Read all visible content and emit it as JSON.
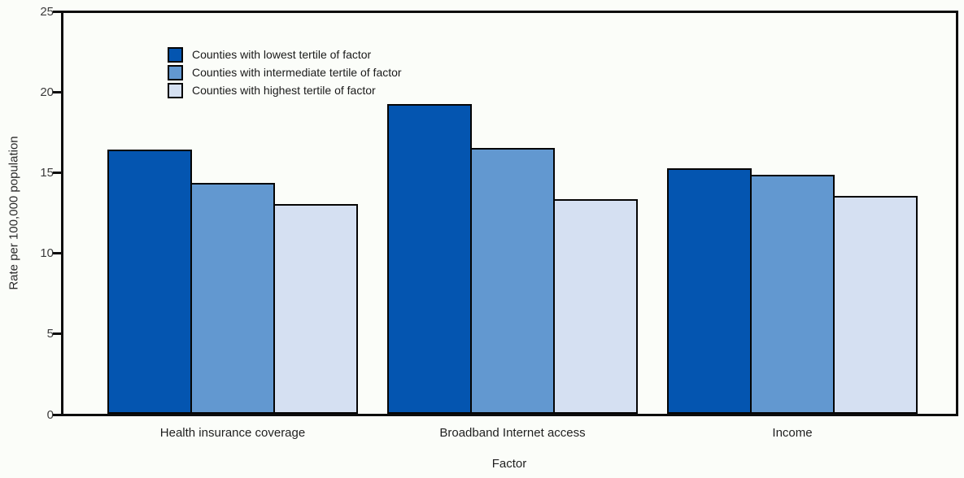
{
  "chart_data": {
    "type": "bar",
    "title": "",
    "xlabel": "Factor",
    "ylabel": "Rate per 100,000 population",
    "ylim": [
      0,
      25
    ],
    "yticks": [
      0,
      5,
      10,
      15,
      20,
      25
    ],
    "grid": false,
    "legend_position": "top-left-inside",
    "categories": [
      "Health insurance coverage",
      "Broadband Internet access",
      "Income"
    ],
    "series": [
      {
        "name": "Counties with lowest tertile of factor",
        "color": "#0455B0",
        "values": [
          16.4,
          19.2,
          15.2
        ]
      },
      {
        "name": "Counties with intermediate tertile of factor",
        "color": "#6298D0",
        "values": [
          14.3,
          16.5,
          14.8
        ]
      },
      {
        "name": "Counties with highest tertile of factor",
        "color": "#D5E0F2",
        "values": [
          13.0,
          13.3,
          13.5
        ]
      }
    ]
  },
  "colors": {
    "background": "#FBFDF9",
    "plot_border": "#0d0d0d",
    "bar_border": "#050505",
    "tick_text": "#3c3c3c",
    "label_text": "#1f1f1f"
  }
}
